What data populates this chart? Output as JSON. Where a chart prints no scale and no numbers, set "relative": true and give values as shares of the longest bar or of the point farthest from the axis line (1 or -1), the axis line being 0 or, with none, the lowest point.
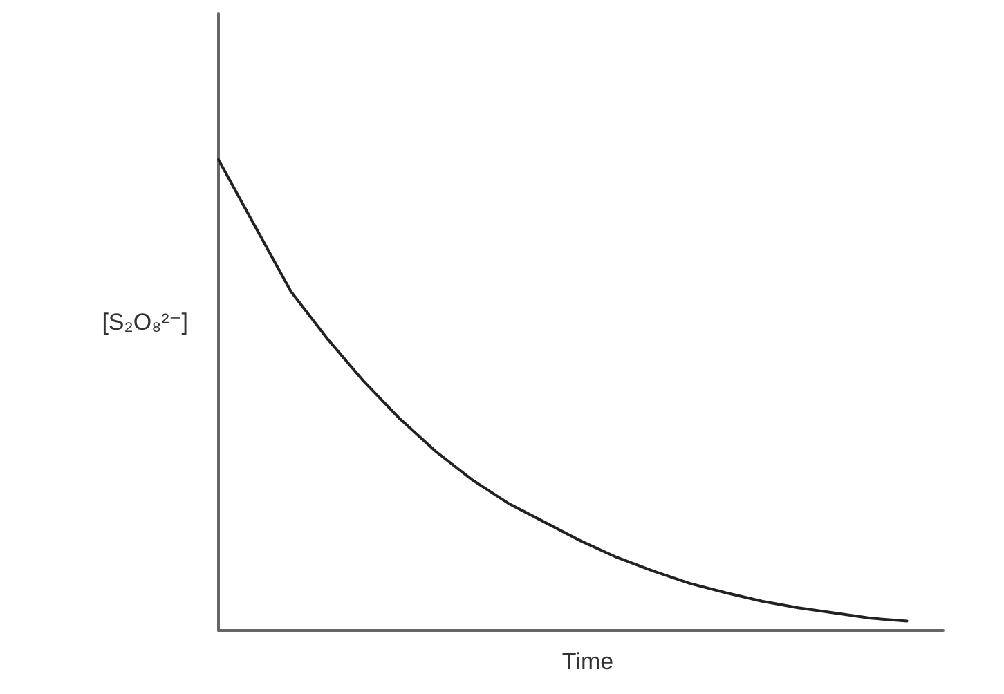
{
  "chart_data": {
    "type": "line",
    "xlabel": "Time",
    "ylabel": "[S₂O₈²⁻]",
    "relative": true,
    "categories": [
      null,
      null,
      null,
      null,
      null,
      null,
      null,
      null,
      null,
      null,
      null,
      null,
      null,
      null,
      null,
      null,
      null,
      null,
      null,
      null,
      null
    ],
    "series": [
      {
        "color": "#222222",
        "values": [
          1.0,
          0.86,
          0.72,
          0.62,
          0.53,
          0.45,
          0.38,
          0.32,
          0.27,
          0.23,
          0.19,
          0.155,
          0.126,
          0.1,
          0.08,
          0.062,
          0.048,
          0.037,
          0.026,
          0.02,
          null
        ]
      }
    ]
  }
}
